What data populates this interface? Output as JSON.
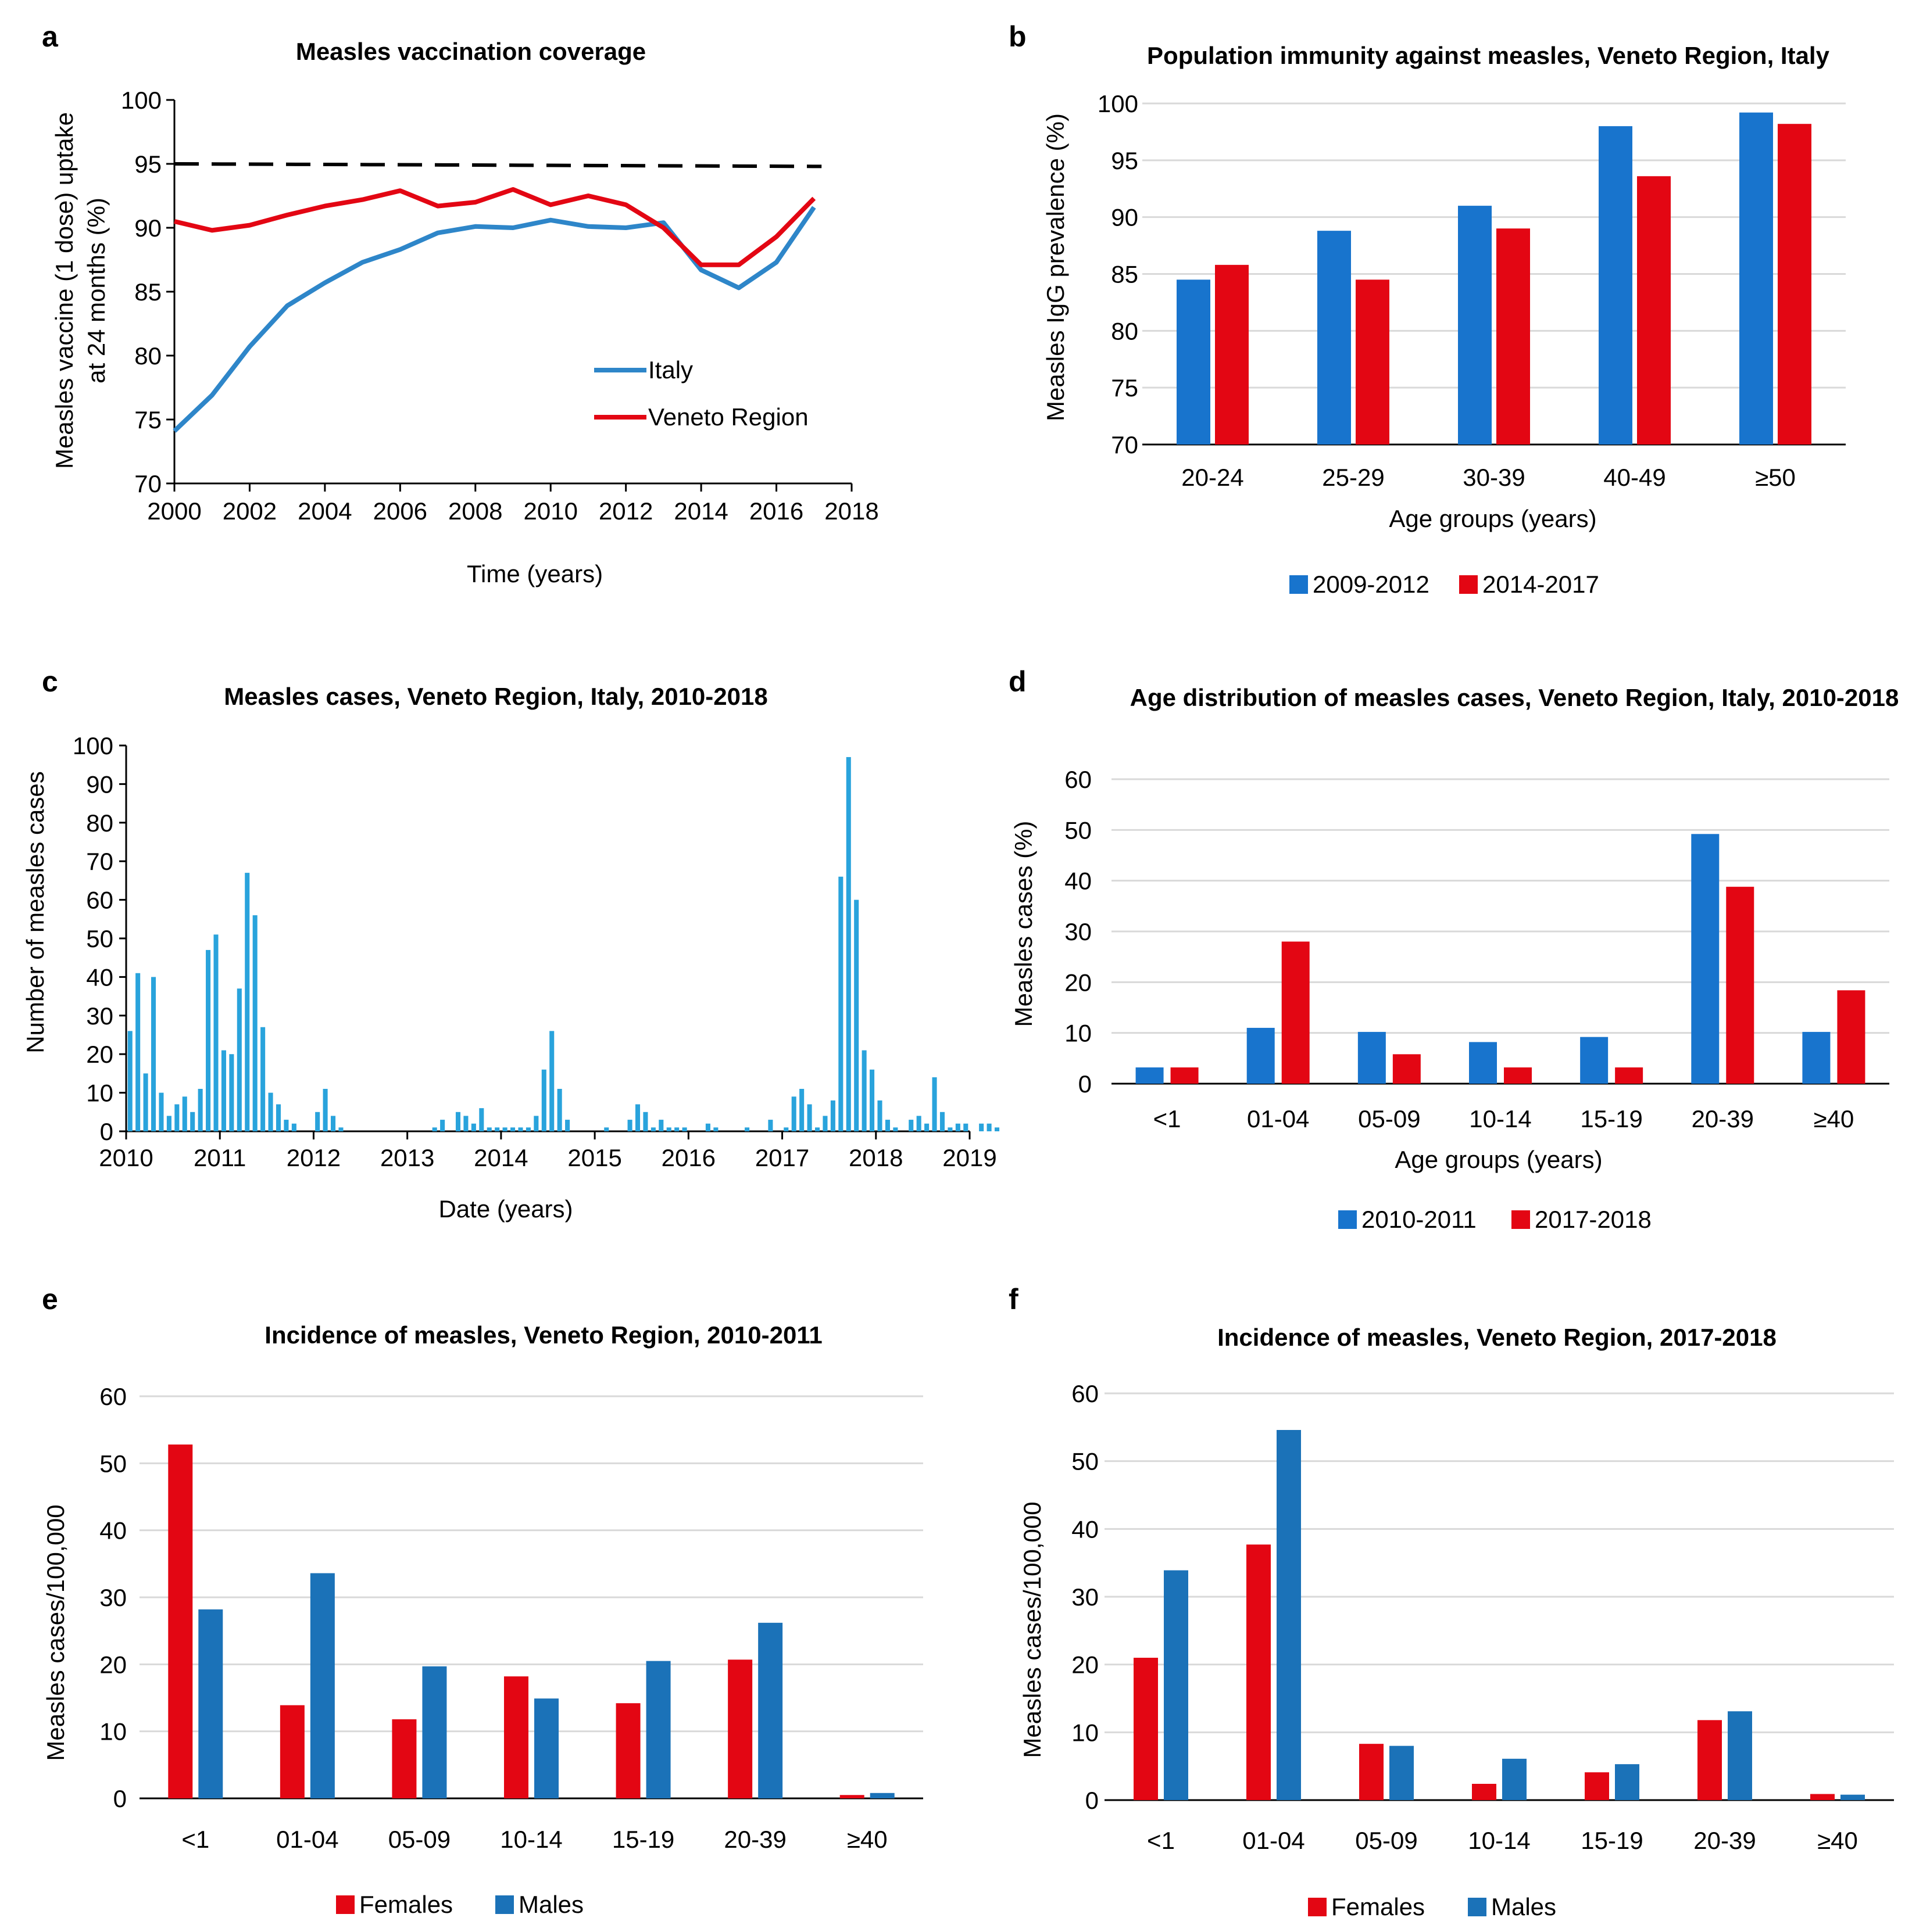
{
  "chart_data": [
    {
      "panel": "a",
      "type": "line",
      "title": "Measles vaccination coverage",
      "xlabel": "Time (years)",
      "ylabel_line1": "Measles vaccine (1 dose) uptake",
      "ylabel_line2": "at 24 months (%)",
      "xlim": [
        2000,
        2018
      ],
      "ylim": [
        70,
        100
      ],
      "xticks": [
        "2000",
        "2002",
        "2004",
        "2006",
        "2008",
        "2010",
        "2012",
        "2014",
        "2016",
        "2018"
      ],
      "yticks": [
        "70",
        "75",
        "80",
        "85",
        "90",
        "95",
        "100"
      ],
      "grid": false,
      "legend": "center-right",
      "x": [
        2000,
        2001,
        2002,
        2003,
        2004,
        2005,
        2006,
        2007,
        2008,
        2009,
        2010,
        2011,
        2012,
        2013,
        2014,
        2015,
        2016,
        2017
      ],
      "series": [
        {
          "name": "Italy",
          "color": "#2e86c9",
          "values": [
            74.1,
            76.9,
            80.7,
            83.9,
            85.7,
            87.3,
            88.3,
            89.6,
            90.1,
            90.0,
            90.6,
            90.1,
            90.0,
            90.4,
            86.7,
            85.3,
            87.3,
            91.6
          ]
        },
        {
          "name": "Veneto Region",
          "color": "#e30613",
          "values": [
            90.5,
            89.8,
            90.2,
            91.0,
            91.7,
            92.2,
            92.9,
            91.7,
            92.0,
            93.0,
            91.8,
            92.5,
            91.8,
            90.0,
            87.1,
            87.1,
            89.3,
            92.3
          ]
        }
      ],
      "reference_line": {
        "style": "dashed",
        "color": "#000000",
        "x": [
          2000,
          2017.2
        ],
        "values": [
          95.0,
          94.8
        ]
      }
    },
    {
      "panel": "b",
      "type": "bar",
      "title": "Population immunity against measles, Veneto Region, Italy",
      "xlabel": "Age groups (years)",
      "ylabel": "Measles IgG prevalence (%)",
      "ylim": [
        70,
        100
      ],
      "yticks": [
        "70",
        "75",
        "80",
        "85",
        "90",
        "95",
        "100"
      ],
      "grid": true,
      "legend": "bottom-center",
      "categories": [
        "20-24",
        "25-29",
        "30-39",
        "40-49",
        "≥50"
      ],
      "series": [
        {
          "name": "2009-2012",
          "color": "#1874cd",
          "values": [
            84.5,
            88.8,
            91.0,
            98.0,
            99.2
          ]
        },
        {
          "name": "2014-2017",
          "color": "#e30613",
          "values": [
            85.8,
            84.5,
            89.0,
            93.6,
            98.2
          ]
        }
      ]
    },
    {
      "panel": "c",
      "type": "bar",
      "title": "Measles cases, Veneto Region, Italy, 2010-2018",
      "xlabel": "Date (years)",
      "ylabel": "Number of measles cases",
      "ylim": [
        0,
        100
      ],
      "xlim": [
        2010,
        2019
      ],
      "xticks": [
        "2010",
        "2011",
        "2012",
        "2013",
        "2014",
        "2015",
        "2016",
        "2017",
        "2018",
        "2019"
      ],
      "yticks": [
        "0",
        "10",
        "20",
        "30",
        "40",
        "50",
        "60",
        "70",
        "80",
        "90",
        "100"
      ],
      "grid": false,
      "color": "#29a3dc",
      "monthly_values": [
        26,
        41,
        15,
        40,
        10,
        4,
        7,
        9,
        5,
        11,
        47,
        51,
        21,
        20,
        37,
        67,
        56,
        27,
        10,
        7,
        3,
        2,
        0,
        0,
        5,
        11,
        4,
        1,
        0,
        0,
        0,
        0,
        0,
        0,
        0,
        0,
        0,
        0,
        0,
        1,
        3,
        0,
        5,
        4,
        2,
        6,
        1,
        1,
        1,
        1,
        1,
        1,
        4,
        16,
        26,
        11,
        3,
        0,
        0,
        0,
        0,
        1,
        0,
        0,
        3,
        7,
        5,
        1,
        3,
        1,
        1,
        1,
        0,
        0,
        2,
        1,
        0,
        0,
        0,
        1,
        0,
        0,
        3,
        0,
        1,
        9,
        11,
        7,
        1,
        4,
        8,
        66,
        97,
        60,
        21,
        16,
        8,
        3,
        1,
        0,
        3,
        4,
        2,
        14,
        5,
        1,
        2,
        2,
        0,
        2,
        2,
        1
      ]
    },
    {
      "panel": "d",
      "type": "bar",
      "title": "Age distribution of measles cases, Veneto Region, Italy, 2010-2018",
      "xlabel": "Age groups (years)",
      "ylabel": "Measles cases (%)",
      "ylim": [
        0,
        60
      ],
      "yticks": [
        "0",
        "10",
        "20",
        "30",
        "40",
        "50",
        "60"
      ],
      "grid": true,
      "legend": "bottom-center",
      "categories": [
        "<1",
        "01-04",
        "05-09",
        "10-14",
        "15-19",
        "20-39",
        "≥40"
      ],
      "series": [
        {
          "name": "2010-2011",
          "color": "#1874cd",
          "values": [
            3.2,
            11.0,
            10.2,
            8.2,
            9.2,
            49.2,
            10.2
          ]
        },
        {
          "name": "2017-2018",
          "color": "#e30613",
          "values": [
            3.2,
            28.0,
            5.8,
            3.2,
            3.2,
            38.8,
            18.4
          ]
        }
      ]
    },
    {
      "panel": "e",
      "type": "bar",
      "title": "Incidence of measles, Veneto Region, 2010-2011",
      "xlabel": "",
      "ylabel": "Measles cases/100,000",
      "ylim": [
        0,
        60
      ],
      "yticks": [
        "0",
        "10",
        "20",
        "30",
        "40",
        "50",
        "60"
      ],
      "grid": true,
      "legend": "bottom-center",
      "categories": [
        "<1",
        "01-04",
        "05-09",
        "10-14",
        "15-19",
        "20-39",
        "≥40"
      ],
      "series": [
        {
          "name": "Females",
          "color": "#e30613",
          "values": [
            52.8,
            13.9,
            11.8,
            18.2,
            14.2,
            20.7,
            0.5
          ]
        },
        {
          "name": "Males",
          "color": "#1b72b8",
          "values": [
            28.2,
            33.6,
            19.7,
            14.9,
            20.5,
            26.2,
            0.8
          ]
        }
      ]
    },
    {
      "panel": "f",
      "type": "bar",
      "title": "Incidence of measles, Veneto Region, 2017-2018",
      "xlabel": "",
      "ylabel": "Measles cases/100,000",
      "ylim": [
        0,
        60
      ],
      "yticks": [
        "0",
        "10",
        "20",
        "30",
        "40",
        "50",
        "60"
      ],
      "grid": true,
      "legend": "bottom-center",
      "categories": [
        "<1",
        "01-04",
        "05-09",
        "10-14",
        "15-19",
        "20-39",
        "≥40"
      ],
      "series": [
        {
          "name": "Females",
          "color": "#e30613",
          "values": [
            21.0,
            37.7,
            8.3,
            2.4,
            4.1,
            11.8,
            0.9
          ]
        },
        {
          "name": "Males",
          "color": "#1b72b8",
          "values": [
            33.9,
            54.6,
            8.0,
            6.1,
            5.3,
            13.1,
            0.8
          ]
        }
      ]
    }
  ]
}
